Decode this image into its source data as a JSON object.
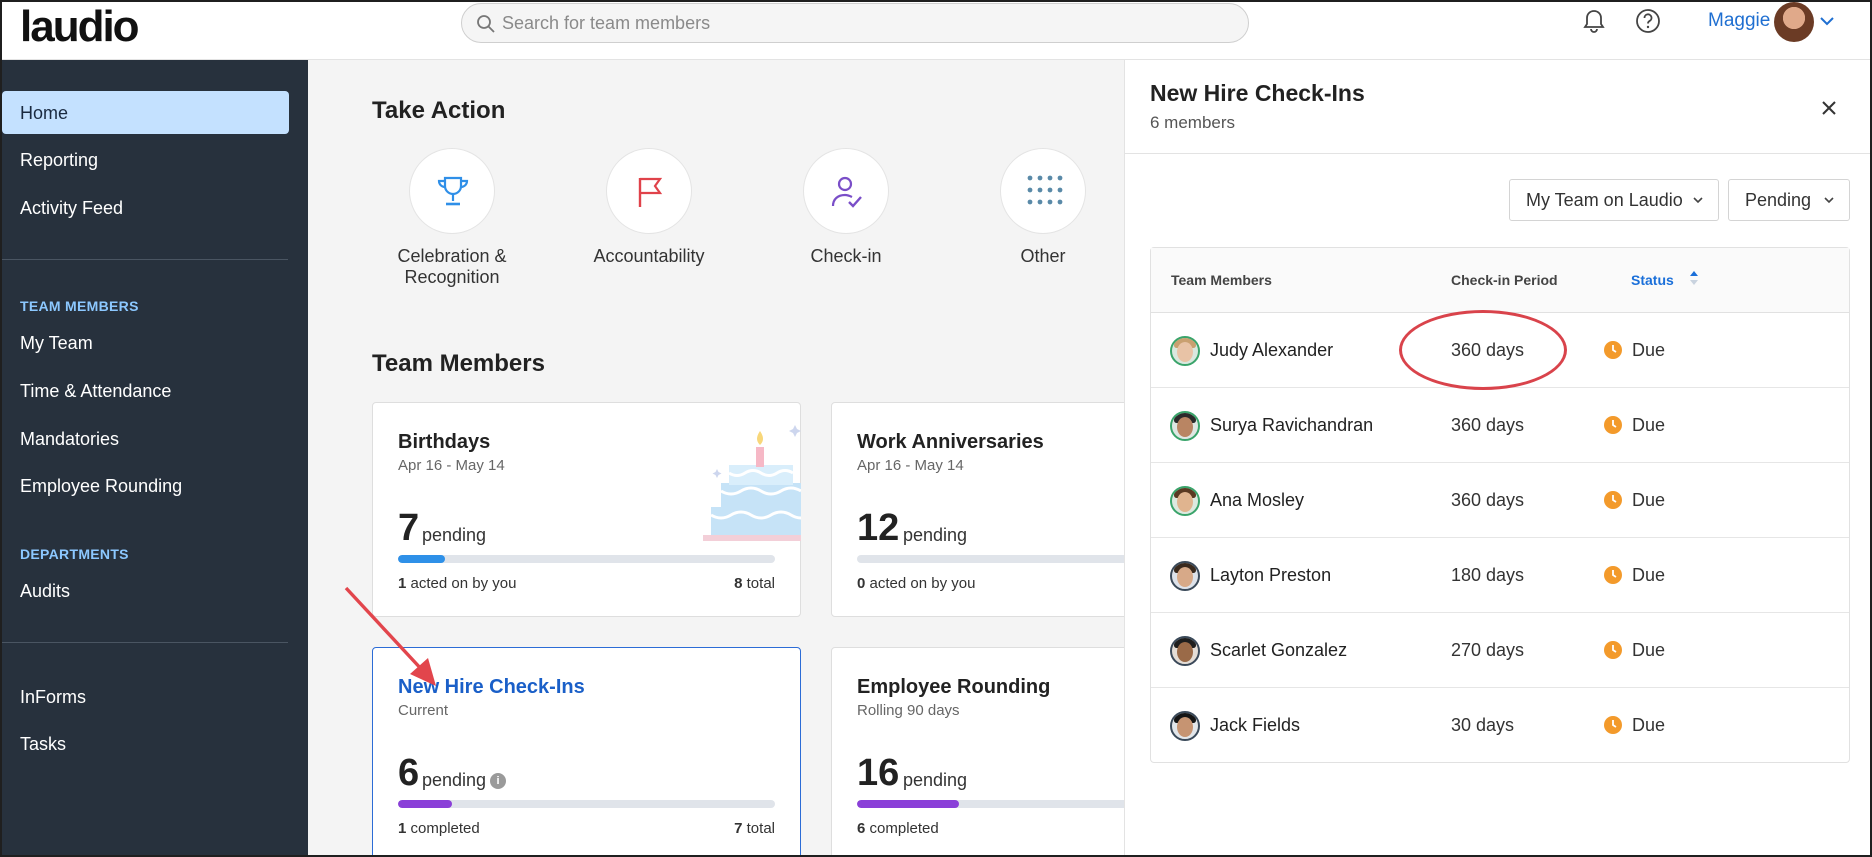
{
  "app": {
    "logo": "laudio"
  },
  "search": {
    "placeholder": "Search for team members"
  },
  "header": {
    "user_name": "Maggie"
  },
  "sidebar": {
    "items": [
      "Home",
      "Reporting",
      "Activity Feed"
    ],
    "team_members_heading": "TEAM MEMBERS",
    "team_items": [
      "My Team",
      "Time & Attendance",
      "Mandatories",
      "Employee Rounding"
    ],
    "departments_heading": "DEPARTMENTS",
    "department_items": [
      "Audits"
    ],
    "bottom_items": [
      "InForms",
      "Tasks"
    ]
  },
  "main": {
    "take_action_title": "Take Action",
    "actions": [
      {
        "label": "Celebration & Recognition",
        "icon": "trophy-icon"
      },
      {
        "label": "Accountability",
        "icon": "flag-icon"
      },
      {
        "label": "Check-in",
        "icon": "user-check-icon"
      },
      {
        "label": "Other",
        "icon": "grid-dots-icon"
      }
    ],
    "team_members_title": "Team Members",
    "cards": [
      {
        "title": "Birthdays",
        "subtitle": "Apr 16 - May 14",
        "count": "7",
        "pending_label": "pending",
        "progress": 0.125,
        "foot_left_num": "1",
        "foot_left_text": "acted on by you",
        "foot_right_num": "8",
        "foot_right_text": "total"
      },
      {
        "title": "Work Anniversaries",
        "subtitle": "Apr 16 - May 14",
        "count": "12",
        "pending_label": "pending",
        "progress": 0.0,
        "foot_left_num": "0",
        "foot_left_text": "acted on by you"
      },
      {
        "title": "New Hire Check-Ins",
        "subtitle": "Current",
        "count": "6",
        "pending_label": "pending",
        "progress": 0.143,
        "foot_left_num": "1",
        "foot_left_text": "completed",
        "foot_right_num": "7",
        "foot_right_text": "total"
      },
      {
        "title": "Employee Rounding",
        "subtitle": "Rolling 90 days",
        "count": "16",
        "pending_label": "pending",
        "progress": 0.27,
        "foot_left_num": "6",
        "foot_left_text": "completed"
      }
    ]
  },
  "panel": {
    "title": "New Hire Check-Ins",
    "subtitle": "6 members",
    "filter_team": "My Team on Laudio",
    "filter_status": "Pending",
    "columns": [
      "Team Members",
      "Check-in Period",
      "Status"
    ],
    "rows": [
      {
        "name": "Judy Alexander",
        "period": "360 days",
        "status": "Due"
      },
      {
        "name": "Surya Ravichandran",
        "period": "360 days",
        "status": "Due"
      },
      {
        "name": "Ana Mosley",
        "period": "360 days",
        "status": "Due"
      },
      {
        "name": "Layton Preston",
        "period": "180 days",
        "status": "Due"
      },
      {
        "name": "Scarlet Gonzalez",
        "period": "270 days",
        "status": "Due"
      },
      {
        "name": "Jack Fields",
        "period": "30 days",
        "status": "Due"
      }
    ]
  },
  "colors": {
    "accent": "#1f6fd1",
    "sidebar_bg": "#27313d",
    "active_nav": "#c4e1ff",
    "due": "#f39a2b",
    "annotation": "#d9434b"
  }
}
